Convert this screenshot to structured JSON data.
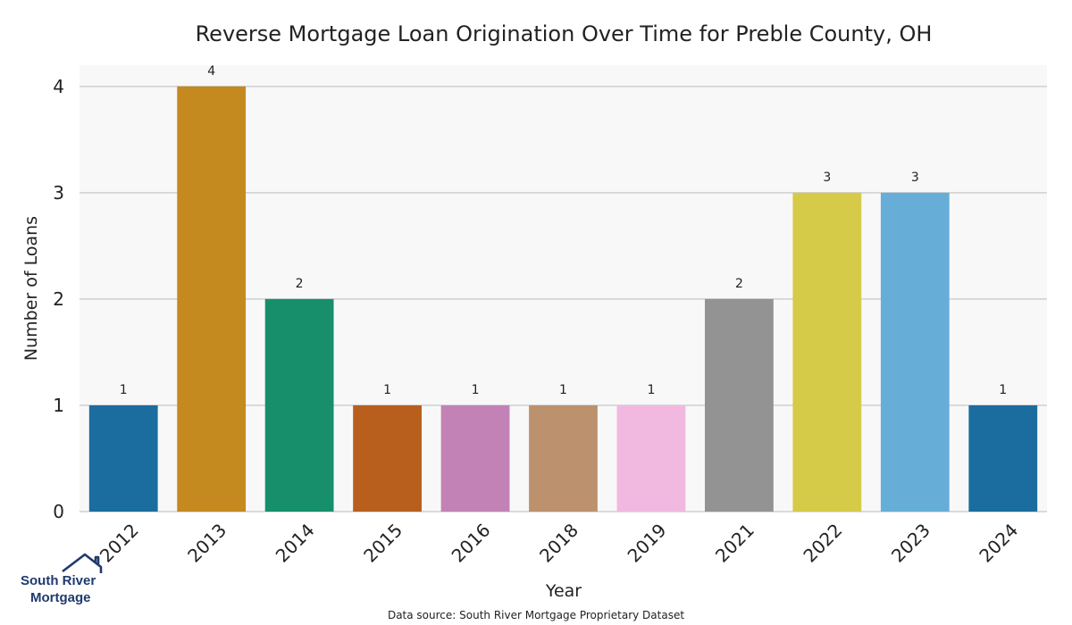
{
  "chart_data": {
    "type": "bar",
    "title": "Reverse Mortgage Loan Origination Over Time for Preble County, OH",
    "xlabel": "Year",
    "ylabel": "Number of Loans",
    "categories": [
      "2012",
      "2013",
      "2014",
      "2015",
      "2016",
      "2018",
      "2019",
      "2021",
      "2022",
      "2023",
      "2024"
    ],
    "values": [
      1,
      4,
      2,
      1,
      1,
      1,
      1,
      2,
      3,
      3,
      1
    ],
    "colors": [
      "#1a6d9e",
      "#c4891f",
      "#178f6a",
      "#b85f1e",
      "#c282b6",
      "#bc916d",
      "#f1b8e0",
      "#939393",
      "#d5cb49",
      "#66aed8",
      "#1a6d9e"
    ],
    "ylim": [
      0,
      4.2
    ],
    "yticks": [
      0,
      1,
      2,
      3,
      4
    ],
    "grid": true,
    "legend": "none"
  },
  "source_note": "Data source: South River Mortgage Proprietary Dataset",
  "logo": {
    "line1": "South River",
    "line2": "Mortgage",
    "icon": "house-roof-icon"
  }
}
